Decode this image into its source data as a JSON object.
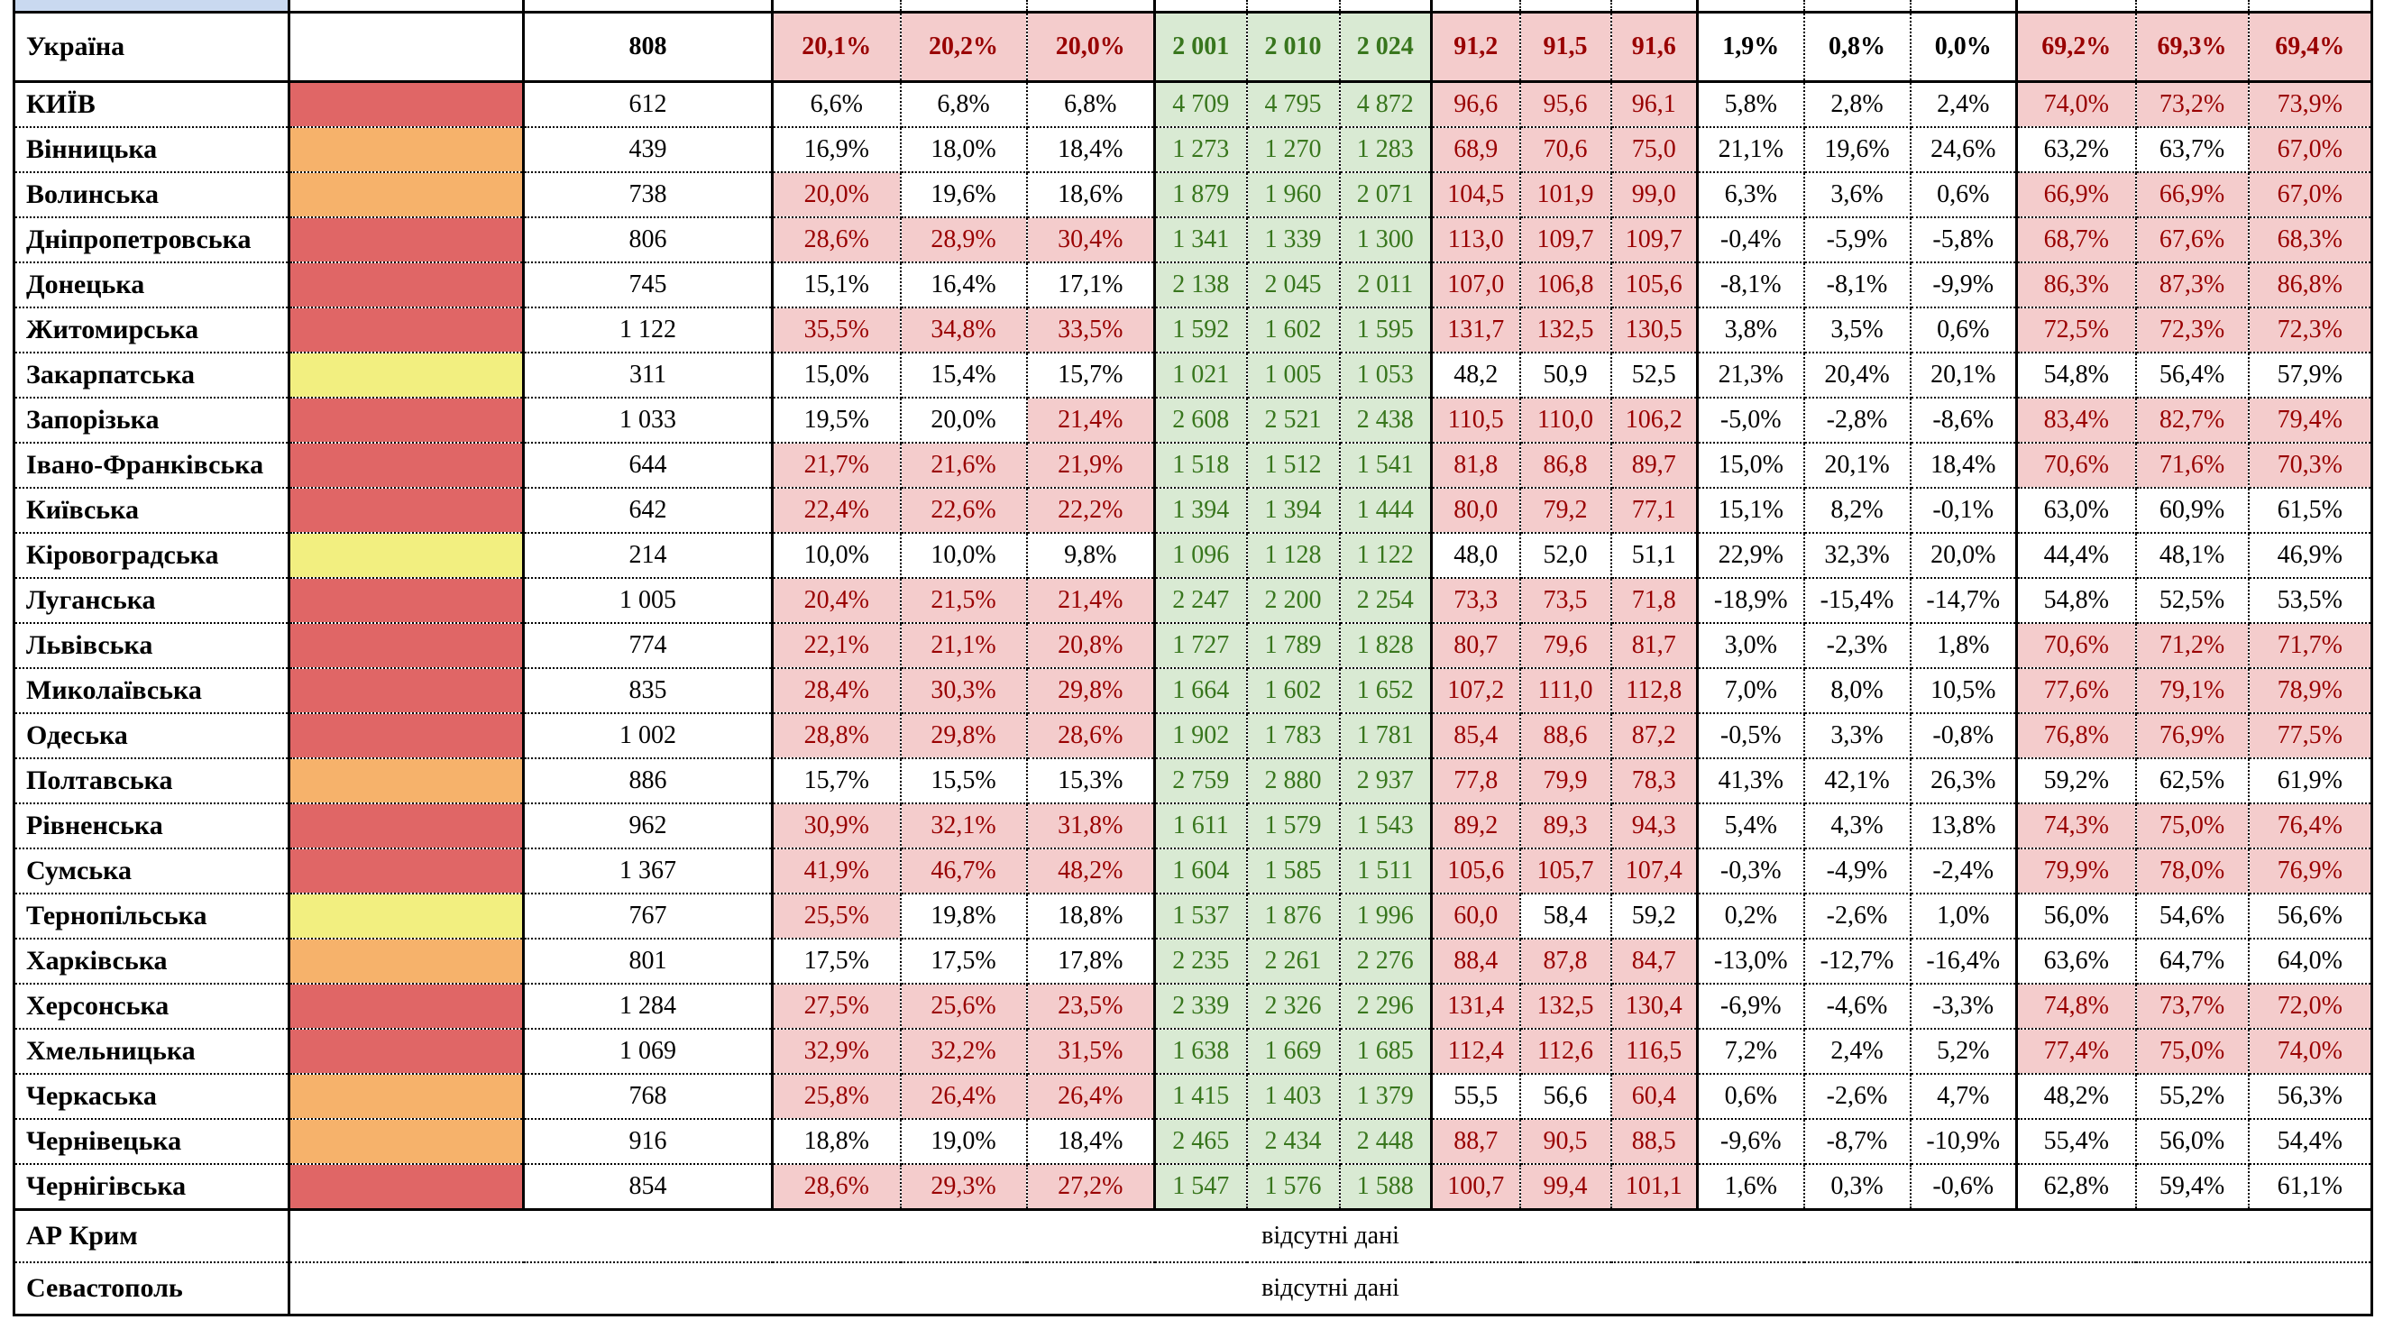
{
  "palette": {
    "swatch_red": "#e06666",
    "swatch_orange": "#f6b26b",
    "swatch_yellow": "#f2ef80",
    "highlight_bg": "#f4cccc",
    "highlight_text": "#990000",
    "green_bg": "#d9ead3",
    "green_text": "#38761d",
    "header_sliver_bg": "#c9d9f0"
  },
  "summary": {
    "name": "Україна",
    "swatch": null,
    "count": "808",
    "g1": [
      "20,1%",
      "20,2%",
      "20,0%"
    ],
    "g1_hl": [
      true,
      true,
      true
    ],
    "g2": [
      "2 001",
      "2 010",
      "2 024"
    ],
    "g3": [
      "91,2",
      "91,5",
      "91,6"
    ],
    "g3_hl": [
      true,
      true,
      true
    ],
    "g4": [
      "1,9%",
      "0,8%",
      "0,0%"
    ],
    "g5": [
      "69,2%",
      "69,3%",
      "69,4%"
    ],
    "g5_hl": [
      true,
      true,
      true
    ]
  },
  "regions": [
    {
      "name": "КИЇВ",
      "swatch": "red",
      "count": "612",
      "g1": [
        "6,6%",
        "6,8%",
        "6,8%"
      ],
      "g1_hl": [
        false,
        false,
        false
      ],
      "g2": [
        "4 709",
        "4 795",
        "4 872"
      ],
      "g3": [
        "96,6",
        "95,6",
        "96,1"
      ],
      "g3_hl": [
        true,
        true,
        true
      ],
      "g4": [
        "5,8%",
        "2,8%",
        "2,4%"
      ],
      "g5": [
        "74,0%",
        "73,2%",
        "73,9%"
      ],
      "g5_hl": [
        true,
        true,
        true
      ]
    },
    {
      "name": "Вінницька",
      "swatch": "orange",
      "count": "439",
      "g1": [
        "16,9%",
        "18,0%",
        "18,4%"
      ],
      "g1_hl": [
        false,
        false,
        false
      ],
      "g2": [
        "1 273",
        "1 270",
        "1 283"
      ],
      "g3": [
        "68,9",
        "70,6",
        "75,0"
      ],
      "g3_hl": [
        true,
        true,
        true
      ],
      "g4": [
        "21,1%",
        "19,6%",
        "24,6%"
      ],
      "g5": [
        "63,2%",
        "63,7%",
        "67,0%"
      ],
      "g5_hl": [
        false,
        false,
        true
      ]
    },
    {
      "name": "Волинська",
      "swatch": "orange",
      "count": "738",
      "g1": [
        "20,0%",
        "19,6%",
        "18,6%"
      ],
      "g1_hl": [
        true,
        false,
        false
      ],
      "g2": [
        "1 879",
        "1 960",
        "2 071"
      ],
      "g3": [
        "104,5",
        "101,9",
        "99,0"
      ],
      "g3_hl": [
        true,
        true,
        true
      ],
      "g4": [
        "6,3%",
        "3,6%",
        "0,6%"
      ],
      "g5": [
        "66,9%",
        "66,9%",
        "67,0%"
      ],
      "g5_hl": [
        true,
        true,
        true
      ]
    },
    {
      "name": "Дніпропетровська",
      "swatch": "red",
      "count": "806",
      "g1": [
        "28,6%",
        "28,9%",
        "30,4%"
      ],
      "g1_hl": [
        true,
        true,
        true
      ],
      "g2": [
        "1 341",
        "1 339",
        "1 300"
      ],
      "g3": [
        "113,0",
        "109,7",
        "109,7"
      ],
      "g3_hl": [
        true,
        true,
        true
      ],
      "g4": [
        "-0,4%",
        "-5,9%",
        "-5,8%"
      ],
      "g5": [
        "68,7%",
        "67,6%",
        "68,3%"
      ],
      "g5_hl": [
        true,
        true,
        true
      ]
    },
    {
      "name": "Донецька",
      "swatch": "red",
      "count": "745",
      "g1": [
        "15,1%",
        "16,4%",
        "17,1%"
      ],
      "g1_hl": [
        false,
        false,
        false
      ],
      "g2": [
        "2 138",
        "2 045",
        "2 011"
      ],
      "g3": [
        "107,0",
        "106,8",
        "105,6"
      ],
      "g3_hl": [
        true,
        true,
        true
      ],
      "g4": [
        "-8,1%",
        "-8,1%",
        "-9,9%"
      ],
      "g5": [
        "86,3%",
        "87,3%",
        "86,8%"
      ],
      "g5_hl": [
        true,
        true,
        true
      ]
    },
    {
      "name": "Житомирська",
      "swatch": "red",
      "count": "1 122",
      "g1": [
        "35,5%",
        "34,8%",
        "33,5%"
      ],
      "g1_hl": [
        true,
        true,
        true
      ],
      "g2": [
        "1 592",
        "1 602",
        "1 595"
      ],
      "g3": [
        "131,7",
        "132,5",
        "130,5"
      ],
      "g3_hl": [
        true,
        true,
        true
      ],
      "g4": [
        "3,8%",
        "3,5%",
        "0,6%"
      ],
      "g5": [
        "72,5%",
        "72,3%",
        "72,3%"
      ],
      "g5_hl": [
        true,
        true,
        true
      ]
    },
    {
      "name": "Закарпатська",
      "swatch": "yellow",
      "count": "311",
      "g1": [
        "15,0%",
        "15,4%",
        "15,7%"
      ],
      "g1_hl": [
        false,
        false,
        false
      ],
      "g2": [
        "1 021",
        "1 005",
        "1 053"
      ],
      "g3": [
        "48,2",
        "50,9",
        "52,5"
      ],
      "g3_hl": [
        false,
        false,
        false
      ],
      "g4": [
        "21,3%",
        "20,4%",
        "20,1%"
      ],
      "g5": [
        "54,8%",
        "56,4%",
        "57,9%"
      ],
      "g5_hl": [
        false,
        false,
        false
      ]
    },
    {
      "name": "Запорізька",
      "swatch": "red",
      "count": "1 033",
      "g1": [
        "19,5%",
        "20,0%",
        "21,4%"
      ],
      "g1_hl": [
        false,
        false,
        true
      ],
      "g2": [
        "2 608",
        "2 521",
        "2 438"
      ],
      "g3": [
        "110,5",
        "110,0",
        "106,2"
      ],
      "g3_hl": [
        true,
        true,
        true
      ],
      "g4": [
        "-5,0%",
        "-2,8%",
        "-8,6%"
      ],
      "g5": [
        "83,4%",
        "82,7%",
        "79,4%"
      ],
      "g5_hl": [
        true,
        true,
        true
      ]
    },
    {
      "name": "Івано-Франківська",
      "swatch": "red",
      "count": "644",
      "g1": [
        "21,7%",
        "21,6%",
        "21,9%"
      ],
      "g1_hl": [
        true,
        true,
        true
      ],
      "g2": [
        "1 518",
        "1 512",
        "1 541"
      ],
      "g3": [
        "81,8",
        "86,8",
        "89,7"
      ],
      "g3_hl": [
        true,
        true,
        true
      ],
      "g4": [
        "15,0%",
        "20,1%",
        "18,4%"
      ],
      "g5": [
        "70,6%",
        "71,6%",
        "70,3%"
      ],
      "g5_hl": [
        true,
        true,
        true
      ]
    },
    {
      "name": "Київська",
      "swatch": "red",
      "count": "642",
      "g1": [
        "22,4%",
        "22,6%",
        "22,2%"
      ],
      "g1_hl": [
        true,
        true,
        true
      ],
      "g2": [
        "1 394",
        "1 394",
        "1 444"
      ],
      "g3": [
        "80,0",
        "79,2",
        "77,1"
      ],
      "g3_hl": [
        true,
        true,
        true
      ],
      "g4": [
        "15,1%",
        "8,2%",
        "-0,1%"
      ],
      "g5": [
        "63,0%",
        "60,9%",
        "61,5%"
      ],
      "g5_hl": [
        false,
        false,
        false
      ]
    },
    {
      "name": "Кіровоградська",
      "swatch": "yellow",
      "count": "214",
      "g1": [
        "10,0%",
        "10,0%",
        "9,8%"
      ],
      "g1_hl": [
        false,
        false,
        false
      ],
      "g2": [
        "1 096",
        "1 128",
        "1 122"
      ],
      "g3": [
        "48,0",
        "52,0",
        "51,1"
      ],
      "g3_hl": [
        false,
        false,
        false
      ],
      "g4": [
        "22,9%",
        "32,3%",
        "20,0%"
      ],
      "g5": [
        "44,4%",
        "48,1%",
        "46,9%"
      ],
      "g5_hl": [
        false,
        false,
        false
      ]
    },
    {
      "name": "Луганська",
      "swatch": "red",
      "count": "1 005",
      "g1": [
        "20,4%",
        "21,5%",
        "21,4%"
      ],
      "g1_hl": [
        true,
        true,
        true
      ],
      "g2": [
        "2 247",
        "2 200",
        "2 254"
      ],
      "g3": [
        "73,3",
        "73,5",
        "71,8"
      ],
      "g3_hl": [
        true,
        true,
        true
      ],
      "g4": [
        "-18,9%",
        "-15,4%",
        "-14,7%"
      ],
      "g5": [
        "54,8%",
        "52,5%",
        "53,5%"
      ],
      "g5_hl": [
        false,
        false,
        false
      ]
    },
    {
      "name": "Львівська",
      "swatch": "red",
      "count": "774",
      "g1": [
        "22,1%",
        "21,1%",
        "20,8%"
      ],
      "g1_hl": [
        true,
        true,
        true
      ],
      "g2": [
        "1 727",
        "1 789",
        "1 828"
      ],
      "g3": [
        "80,7",
        "79,6",
        "81,7"
      ],
      "g3_hl": [
        true,
        true,
        true
      ],
      "g4": [
        "3,0%",
        "-2,3%",
        "1,8%"
      ],
      "g5": [
        "70,6%",
        "71,2%",
        "71,7%"
      ],
      "g5_hl": [
        true,
        true,
        true
      ]
    },
    {
      "name": "Миколаївська",
      "swatch": "red",
      "count": "835",
      "g1": [
        "28,4%",
        "30,3%",
        "29,8%"
      ],
      "g1_hl": [
        true,
        true,
        true
      ],
      "g2": [
        "1 664",
        "1 602",
        "1 652"
      ],
      "g3": [
        "107,2",
        "111,0",
        "112,8"
      ],
      "g3_hl": [
        true,
        true,
        true
      ],
      "g4": [
        "7,0%",
        "8,0%",
        "10,5%"
      ],
      "g5": [
        "77,6%",
        "79,1%",
        "78,9%"
      ],
      "g5_hl": [
        true,
        true,
        true
      ]
    },
    {
      "name": "Одеська",
      "swatch": "red",
      "count": "1 002",
      "g1": [
        "28,8%",
        "29,8%",
        "28,6%"
      ],
      "g1_hl": [
        true,
        true,
        true
      ],
      "g2": [
        "1 902",
        "1 783",
        "1 781"
      ],
      "g3": [
        "85,4",
        "88,6",
        "87,2"
      ],
      "g3_hl": [
        true,
        true,
        true
      ],
      "g4": [
        "-0,5%",
        "3,3%",
        "-0,8%"
      ],
      "g5": [
        "76,8%",
        "76,9%",
        "77,5%"
      ],
      "g5_hl": [
        true,
        true,
        true
      ]
    },
    {
      "name": "Полтавська",
      "swatch": "orange",
      "count": "886",
      "g1": [
        "15,7%",
        "15,5%",
        "15,3%"
      ],
      "g1_hl": [
        false,
        false,
        false
      ],
      "g2": [
        "2 759",
        "2 880",
        "2 937"
      ],
      "g3": [
        "77,8",
        "79,9",
        "78,3"
      ],
      "g3_hl": [
        true,
        true,
        true
      ],
      "g4": [
        "41,3%",
        "42,1%",
        "26,3%"
      ],
      "g5": [
        "59,2%",
        "62,5%",
        "61,9%"
      ],
      "g5_hl": [
        false,
        false,
        false
      ]
    },
    {
      "name": "Рівненська",
      "swatch": "red",
      "count": "962",
      "g1": [
        "30,9%",
        "32,1%",
        "31,8%"
      ],
      "g1_hl": [
        true,
        true,
        true
      ],
      "g2": [
        "1 611",
        "1 579",
        "1 543"
      ],
      "g3": [
        "89,2",
        "89,3",
        "94,3"
      ],
      "g3_hl": [
        true,
        true,
        true
      ],
      "g4": [
        "5,4%",
        "4,3%",
        "13,8%"
      ],
      "g5": [
        "74,3%",
        "75,0%",
        "76,4%"
      ],
      "g5_hl": [
        true,
        true,
        true
      ]
    },
    {
      "name": "Сумська",
      "swatch": "red",
      "count": "1 367",
      "g1": [
        "41,9%",
        "46,7%",
        "48,2%"
      ],
      "g1_hl": [
        true,
        true,
        true
      ],
      "g2": [
        "1 604",
        "1 585",
        "1 511"
      ],
      "g3": [
        "105,6",
        "105,7",
        "107,4"
      ],
      "g3_hl": [
        true,
        true,
        true
      ],
      "g4": [
        "-0,3%",
        "-4,9%",
        "-2,4%"
      ],
      "g5": [
        "79,9%",
        "78,0%",
        "76,9%"
      ],
      "g5_hl": [
        true,
        true,
        true
      ]
    },
    {
      "name": "Тернопільська",
      "swatch": "yellow",
      "count": "767",
      "g1": [
        "25,5%",
        "19,8%",
        "18,8%"
      ],
      "g1_hl": [
        true,
        false,
        false
      ],
      "g2": [
        "1 537",
        "1 876",
        "1 996"
      ],
      "g3": [
        "60,0",
        "58,4",
        "59,2"
      ],
      "g3_hl": [
        true,
        false,
        false
      ],
      "g4": [
        "0,2%",
        "-2,6%",
        "1,0%"
      ],
      "g5": [
        "56,0%",
        "54,6%",
        "56,6%"
      ],
      "g5_hl": [
        false,
        false,
        false
      ]
    },
    {
      "name": "Харківська",
      "swatch": "orange",
      "count": "801",
      "g1": [
        "17,5%",
        "17,5%",
        "17,8%"
      ],
      "g1_hl": [
        false,
        false,
        false
      ],
      "g2": [
        "2 235",
        "2 261",
        "2 276"
      ],
      "g3": [
        "88,4",
        "87,8",
        "84,7"
      ],
      "g3_hl": [
        true,
        true,
        true
      ],
      "g4": [
        "-13,0%",
        "-12,7%",
        "-16,4%"
      ],
      "g5": [
        "63,6%",
        "64,7%",
        "64,0%"
      ],
      "g5_hl": [
        false,
        false,
        false
      ]
    },
    {
      "name": "Херсонська",
      "swatch": "red",
      "count": "1 284",
      "g1": [
        "27,5%",
        "25,6%",
        "23,5%"
      ],
      "g1_hl": [
        true,
        true,
        true
      ],
      "g2": [
        "2 339",
        "2 326",
        "2 296"
      ],
      "g3": [
        "131,4",
        "132,5",
        "130,4"
      ],
      "g3_hl": [
        true,
        true,
        true
      ],
      "g4": [
        "-6,9%",
        "-4,6%",
        "-3,3%"
      ],
      "g5": [
        "74,8%",
        "73,7%",
        "72,0%"
      ],
      "g5_hl": [
        true,
        true,
        true
      ]
    },
    {
      "name": "Хмельницька",
      "swatch": "red",
      "count": "1 069",
      "g1": [
        "32,9%",
        "32,2%",
        "31,5%"
      ],
      "g1_hl": [
        true,
        true,
        true
      ],
      "g2": [
        "1 638",
        "1 669",
        "1 685"
      ],
      "g3": [
        "112,4",
        "112,6",
        "116,5"
      ],
      "g3_hl": [
        true,
        true,
        true
      ],
      "g4": [
        "7,2%",
        "2,4%",
        "5,2%"
      ],
      "g5": [
        "77,4%",
        "75,0%",
        "74,0%"
      ],
      "g5_hl": [
        true,
        true,
        true
      ]
    },
    {
      "name": "Черкаська",
      "swatch": "orange",
      "count": "768",
      "g1": [
        "25,8%",
        "26,4%",
        "26,4%"
      ],
      "g1_hl": [
        true,
        true,
        true
      ],
      "g2": [
        "1 415",
        "1 403",
        "1 379"
      ],
      "g3": [
        "55,5",
        "56,6",
        "60,4"
      ],
      "g3_hl": [
        false,
        false,
        true
      ],
      "g4": [
        "0,6%",
        "-2,6%",
        "4,7%"
      ],
      "g5": [
        "48,2%",
        "55,2%",
        "56,3%"
      ],
      "g5_hl": [
        false,
        false,
        false
      ]
    },
    {
      "name": "Чернівецька",
      "swatch": "orange",
      "count": "916",
      "g1": [
        "18,8%",
        "19,0%",
        "18,4%"
      ],
      "g1_hl": [
        false,
        false,
        false
      ],
      "g2": [
        "2 465",
        "2 434",
        "2 448"
      ],
      "g3": [
        "88,7",
        "90,5",
        "88,5"
      ],
      "g3_hl": [
        true,
        true,
        true
      ],
      "g4": [
        "-9,6%",
        "-8,7%",
        "-10,9%"
      ],
      "g5": [
        "55,4%",
        "56,0%",
        "54,4%"
      ],
      "g5_hl": [
        false,
        false,
        false
      ]
    },
    {
      "name": "Чернігівська",
      "swatch": "red",
      "count": "854",
      "g1": [
        "28,6%",
        "29,3%",
        "27,2%"
      ],
      "g1_hl": [
        true,
        true,
        true
      ],
      "g2": [
        "1 547",
        "1 576",
        "1 588"
      ],
      "g3": [
        "100,7",
        "99,4",
        "101,1"
      ],
      "g3_hl": [
        true,
        true,
        true
      ],
      "g4": [
        "1,6%",
        "0,3%",
        "-0,6%"
      ],
      "g5": [
        "62,8%",
        "59,4%",
        "61,1%"
      ],
      "g5_hl": [
        false,
        false,
        false
      ]
    }
  ],
  "missing": [
    {
      "name": "АР Крим",
      "note": "відсутні дані"
    },
    {
      "name": "Севастополь",
      "note": "відсутні дані"
    }
  ]
}
